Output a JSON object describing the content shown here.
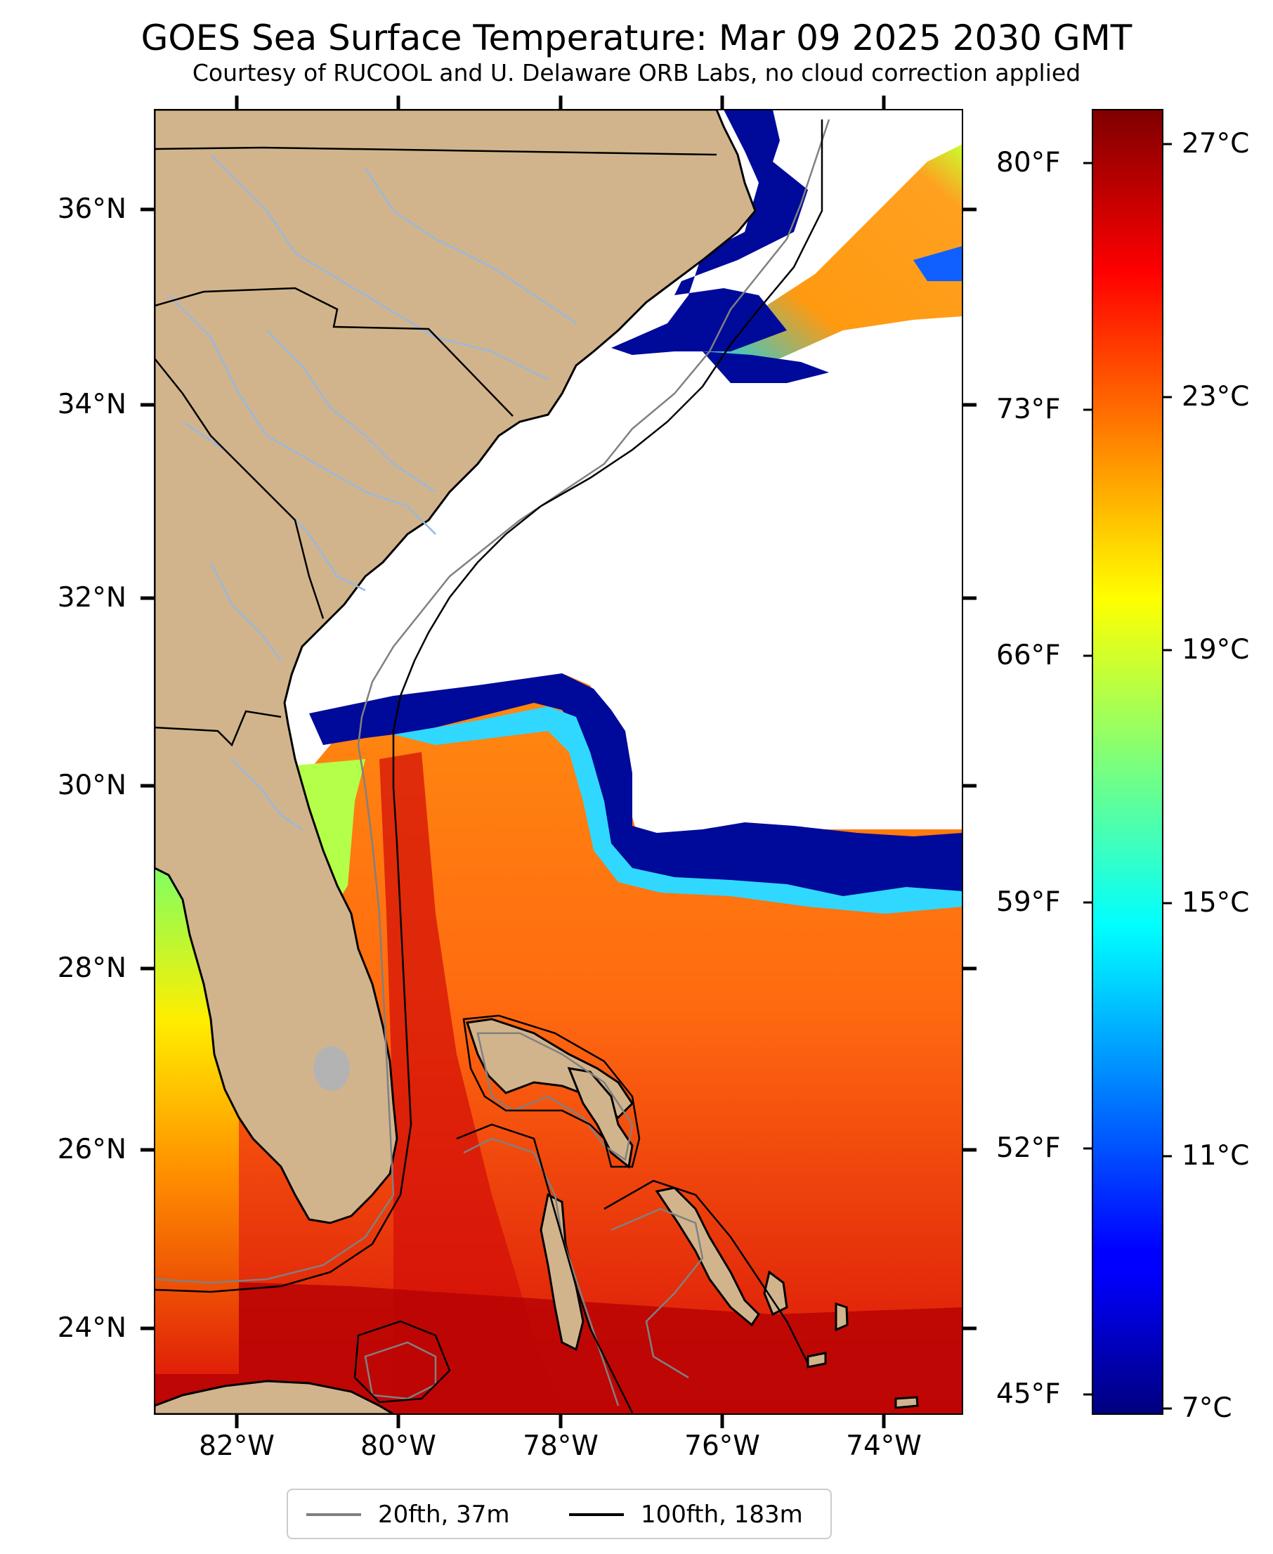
{
  "title": "GOES Sea Surface Temperature: Mar 09 2025 2030 GMT",
  "subtitle": "Courtesy of RUCOOL and U. Delaware ORB Labs, no cloud correction applied",
  "axes": {
    "lat_labels": [
      "36°N",
      "34°N",
      "32°N",
      "30°N",
      "28°N",
      "26°N",
      "24°N"
    ],
    "lon_labels": [
      "82°W",
      "80°W",
      "78°W",
      "76°W",
      "74°W"
    ],
    "fahrenheit_labels": [
      "80°F",
      "73°F",
      "66°F",
      "59°F",
      "52°F",
      "45°F"
    ]
  },
  "colorbar": {
    "labels": [
      "27°C",
      "23°C",
      "19°C",
      "15°C",
      "11°C",
      "7°C"
    ],
    "range_c": [
      6.8,
      27.8
    ],
    "colormap": "jet"
  },
  "legend": {
    "items": [
      {
        "label": "20fth, 37m",
        "color": "#808080"
      },
      {
        "label": "100fth, 183m",
        "color": "#000000"
      }
    ]
  },
  "colors": {
    "land": "#d2b48c",
    "no_data": "#ffffff",
    "rivers": "#9ab8dc",
    "lake": "#b3b3b3"
  }
}
